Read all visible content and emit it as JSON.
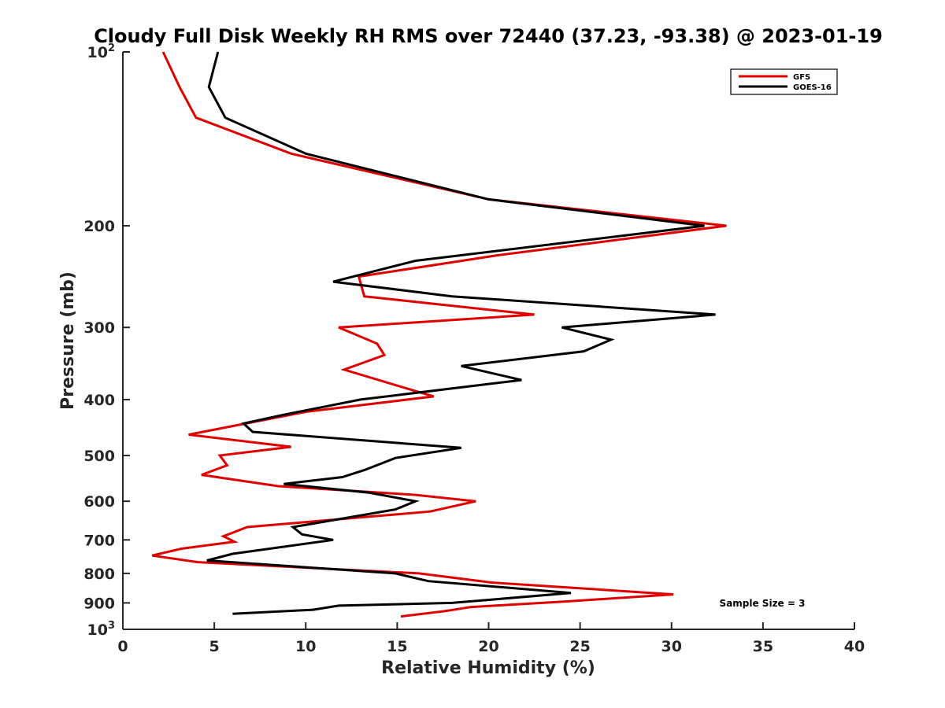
{
  "chart_data": {
    "type": "line",
    "title": "Cloudy Full Disk Weekly RH RMS over 72440 (37.23, -93.38) @ 2023-01-19",
    "xlabel": "Relative Humidity (%)",
    "ylabel": "Pressure (mb)",
    "xlim": [
      0,
      40
    ],
    "ylim": [
      100,
      1000
    ],
    "yscale": "log",
    "y_reversed": true,
    "grid": false,
    "legend_position": "top-right",
    "x_ticks": [
      "0",
      "5",
      "10",
      "15",
      "20",
      "25",
      "30",
      "35",
      "40"
    ],
    "y_ticks": [
      {
        "value": 100,
        "base": "10",
        "exp": "2"
      },
      {
        "value": 200,
        "label": "200"
      },
      {
        "value": 300,
        "label": "300"
      },
      {
        "value": 400,
        "label": "400"
      },
      {
        "value": 500,
        "label": "500"
      },
      {
        "value": 600,
        "label": "600"
      },
      {
        "value": 700,
        "label": "700"
      },
      {
        "value": 800,
        "label": "800"
      },
      {
        "value": 900,
        "label": "900"
      },
      {
        "value": 1000,
        "base": "10",
        "exp": "3"
      }
    ],
    "annotation": "Sample Size = 3",
    "series": [
      {
        "name": "GFS",
        "color": "#e00000",
        "points": [
          [
            2.2,
            100
          ],
          [
            3.1,
            115
          ],
          [
            4.0,
            130
          ],
          [
            9.2,
            150
          ],
          [
            20.0,
            180
          ],
          [
            33.0,
            200
          ],
          [
            20.5,
            225
          ],
          [
            12.9,
            245
          ],
          [
            13.2,
            265
          ],
          [
            22.5,
            285
          ],
          [
            11.8,
            300
          ],
          [
            13.9,
            320
          ],
          [
            14.3,
            335
          ],
          [
            12.1,
            355
          ],
          [
            15.2,
            380
          ],
          [
            17.0,
            395
          ],
          [
            10.0,
            420
          ],
          [
            3.6,
            460
          ],
          [
            9.2,
            483
          ],
          [
            5.3,
            500
          ],
          [
            5.7,
            520
          ],
          [
            4.3,
            540
          ],
          [
            8.5,
            565
          ],
          [
            16.0,
            585
          ],
          [
            19.3,
            600
          ],
          [
            16.8,
            625
          ],
          [
            6.8,
            665
          ],
          [
            5.5,
            690
          ],
          [
            6.1,
            705
          ],
          [
            3.2,
            725
          ],
          [
            1.6,
            745
          ],
          [
            4.1,
            765
          ],
          [
            16.2,
            800
          ],
          [
            20.2,
            830
          ],
          [
            26.5,
            855
          ],
          [
            30.1,
            870
          ],
          [
            24.2,
            895
          ],
          [
            19.0,
            915
          ],
          [
            17.6,
            930
          ],
          [
            15.2,
            950
          ]
        ]
      },
      {
        "name": "GOES-16",
        "color": "#000000",
        "points": [
          [
            5.2,
            100
          ],
          [
            4.7,
            115
          ],
          [
            5.6,
            130
          ],
          [
            10.0,
            150
          ],
          [
            20.0,
            180
          ],
          [
            31.8,
            200
          ],
          [
            16.0,
            230
          ],
          [
            11.5,
            250
          ],
          [
            18.0,
            265
          ],
          [
            32.4,
            285
          ],
          [
            24.0,
            300
          ],
          [
            26.7,
            315
          ],
          [
            25.2,
            330
          ],
          [
            18.5,
            350
          ],
          [
            21.8,
            370
          ],
          [
            13.0,
            400
          ],
          [
            8.8,
            425
          ],
          [
            6.6,
            440
          ],
          [
            7.1,
            455
          ],
          [
            18.5,
            485
          ],
          [
            14.9,
            505
          ],
          [
            13.2,
            530
          ],
          [
            12.0,
            545
          ],
          [
            8.8,
            560
          ],
          [
            13.5,
            580
          ],
          [
            16.0,
            600
          ],
          [
            14.9,
            620
          ],
          [
            9.3,
            665
          ],
          [
            9.8,
            685
          ],
          [
            11.5,
            700
          ],
          [
            6.0,
            740
          ],
          [
            4.6,
            760
          ],
          [
            14.9,
            800
          ],
          [
            16.7,
            825
          ],
          [
            24.5,
            865
          ],
          [
            18.0,
            900
          ],
          [
            11.8,
            910
          ],
          [
            10.4,
            925
          ],
          [
            6.0,
            940
          ]
        ]
      }
    ]
  }
}
